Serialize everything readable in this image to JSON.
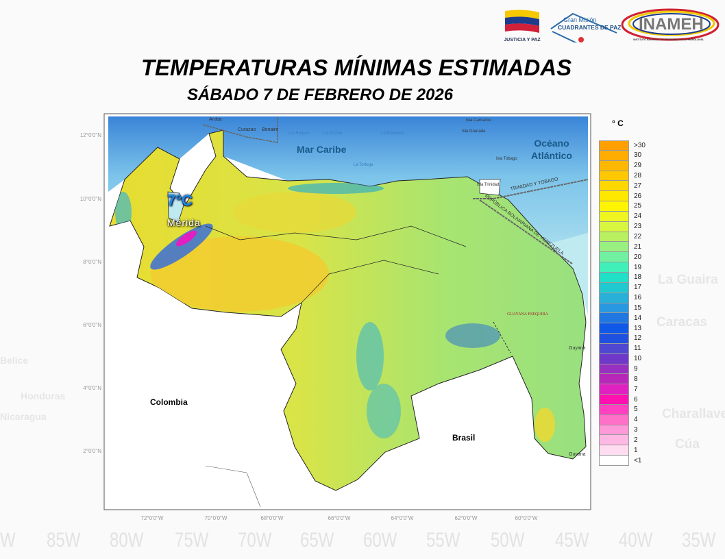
{
  "header": {
    "title": "TEMPERATURAS MÍNIMAS ESTIMADAS",
    "subtitle": "SÁBADO 7 DE FEBRERO DE 2026",
    "logos": [
      {
        "name": "justicia-y-paz-logo",
        "text": "JUSTICIA Y PAZ"
      },
      {
        "name": "cuadrantes-de-paz-logo",
        "text_top": "Gran Misión",
        "text_main": "CUADRANTES DE PAZ"
      },
      {
        "name": "inameh-logo",
        "text": "INAMEH",
        "subtext": "INSTITUTO NACIONAL DE METEOROLOGÍA E HIDROLOGÍA"
      }
    ]
  },
  "map": {
    "highlight": {
      "value": "7°C",
      "place": "Mérida"
    },
    "labels": {
      "sea": "Mar Caribe",
      "ocean": "Océano Atlántico",
      "colombia": "Colombia",
      "brasil": "Brasil",
      "guyana_1": "Guyana",
      "guyana_2": "Guyana",
      "guayana_esequiba": "GUAYANA ESEQUIBA",
      "trinidad_tobago": "TRINIDAD Y TOBAGO",
      "rep_bolivariana": "REPÚBLICA BOLIVARIANA DE VENEZUELA",
      "aruba": "Aruba",
      "curazao": "Curazao",
      "bonaire": "Bonaire",
      "los_roques": "Los Roques",
      "la_orchila": "La Orchila",
      "la_blanquilla": "La Blanquilla",
      "la_tortuga": "La Tortuga",
      "carriacou": "Isla Carriacou",
      "granada": "Isla Granada",
      "tobago": "Isla Tobago",
      "trinidad": "Isla Trinidad"
    },
    "lat_ticks": [
      "12°0'0\"N",
      "10°0'0\"N",
      "8°0'0\"N",
      "6°0'0\"N",
      "4°0'0\"N",
      "2°0'0\"N"
    ],
    "lon_ticks": [
      "72°0'0\"W",
      "70°0'0\"W",
      "68°0'0\"W",
      "66°0'0\"W",
      "64°0'0\"W",
      "62°0'0\"W",
      "60°0'0\"W"
    ]
  },
  "legend": {
    "unit": "° C",
    "classes": [
      {
        "label": ">30",
        "color": "#ffa000"
      },
      {
        "label": "30",
        "color": "#ffac00"
      },
      {
        "label": "29",
        "color": "#ffb800"
      },
      {
        "label": "28",
        "color": "#ffc800"
      },
      {
        "label": "27",
        "color": "#ffd800"
      },
      {
        "label": "26",
        "color": "#ffe800"
      },
      {
        "label": "25",
        "color": "#fff500"
      },
      {
        "label": "24",
        "color": "#eef520"
      },
      {
        "label": "23",
        "color": "#d8f540"
      },
      {
        "label": "22",
        "color": "#b8f060"
      },
      {
        "label": "21",
        "color": "#98f080"
      },
      {
        "label": "20",
        "color": "#70f0a0"
      },
      {
        "label": "19",
        "color": "#40f0b8"
      },
      {
        "label": "18",
        "color": "#20e0c8"
      },
      {
        "label": "17",
        "color": "#20c8d0"
      },
      {
        "label": "16",
        "color": "#28b0d8"
      },
      {
        "label": "15",
        "color": "#2898e0"
      },
      {
        "label": "14",
        "color": "#2078e0"
      },
      {
        "label": "13",
        "color": "#1058e8"
      },
      {
        "label": "12",
        "color": "#2050e0"
      },
      {
        "label": "11",
        "color": "#5048d0"
      },
      {
        "label": "10",
        "color": "#7038c8"
      },
      {
        "label": "9",
        "color": "#9830c0"
      },
      {
        "label": "8",
        "color": "#b828b8"
      },
      {
        "label": "7",
        "color": "#e020c0"
      },
      {
        "label": "6",
        "color": "#ff10b0"
      },
      {
        "label": "5",
        "color": "#ff40c0"
      },
      {
        "label": "4",
        "color": "#ff70c8"
      },
      {
        "label": "3",
        "color": "#ff98d8"
      },
      {
        "label": "2",
        "color": "#ffb8e4"
      },
      {
        "label": "1",
        "color": "#ffdcf0"
      },
      {
        "label": "<1",
        "color": "#ffffff"
      }
    ]
  },
  "background": {
    "longitudes": [
      "W",
      "85W",
      "80W",
      "75W",
      "70W",
      "65W",
      "60W",
      "55W",
      "50W",
      "45W",
      "40W",
      "35W"
    ],
    "places": [
      "La Guaira",
      "Caracas",
      "Charallave",
      "Cúa",
      "Honduras",
      "Belice",
      "Nicaragua"
    ]
  }
}
